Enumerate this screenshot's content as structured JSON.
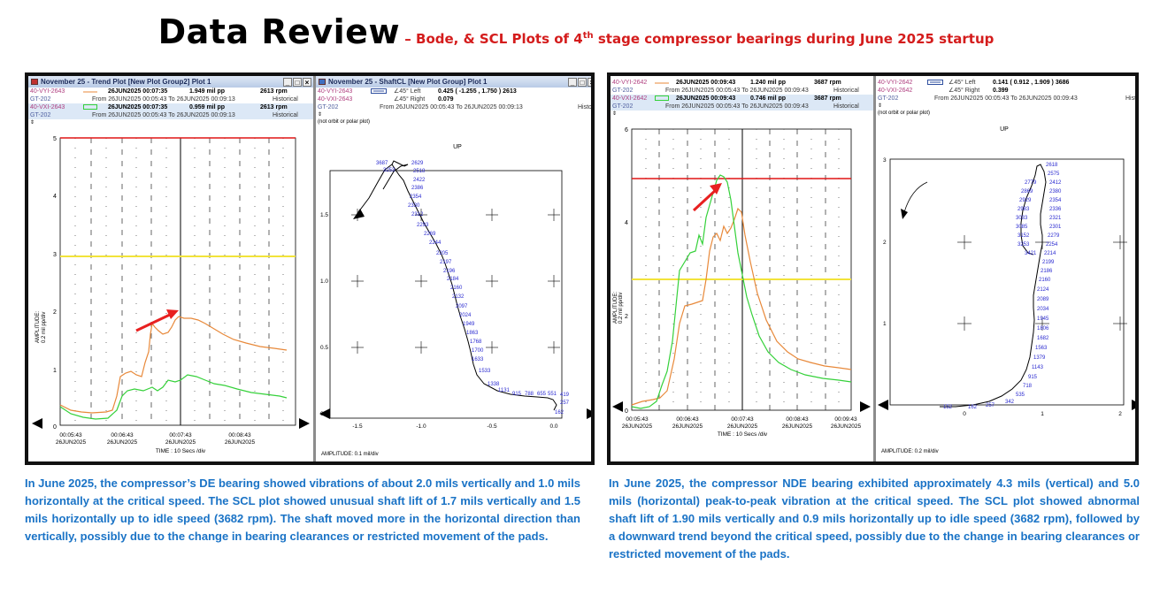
{
  "title": {
    "main": "Data Review",
    "sub_before": " – Bode, & SCL Plots of 4",
    "sub_sup": "th",
    "sub_after": " stage compressor bearings during June 2025 startup"
  },
  "left_trend": {
    "window_title": "November 25 - Trend Plot [New Plot Group2] Plot 1",
    "row1": {
      "tag": "40-VYI-2643",
      "date": "26JUN2025 00:07:35",
      "value": "1.949 mil  pp",
      "rpm": "2613 rpm"
    },
    "row2": {
      "tag": "GT-202",
      "range": "From 26JUN2025 00:05:43 To 26JUN2025 00:09:13",
      "mode": "Historical"
    },
    "row3": {
      "tag": "40-VXI-2643",
      "date": "26JUN2025 00:07:35",
      "value": "0.959 mil  pp",
      "rpm": "2613 rpm"
    },
    "row4": {
      "tag": "GT-202",
      "range": "From 26JUN2025 00:05:43 To 26JUN2025 00:09:13",
      "mode": "Historical"
    },
    "ylabel": "AMPLITUDE:",
    "ylabel2": "0.2 mil pp/div",
    "yticks": [
      "5",
      "4",
      "3",
      "2",
      "1",
      "0"
    ],
    "xticks": [
      [
        "00:05:43",
        "26JUN2025"
      ],
      [
        "00:06:43",
        "26JUN2025"
      ],
      [
        "00:07:43",
        "26JUN2025"
      ],
      [
        "00:08:43",
        "26JUN2025"
      ]
    ],
    "xlabel": "TIME : 10 Secs /div"
  },
  "left_scl": {
    "window_title": "November 25 - ShaftCL [New Plot Group] Plot 1",
    "row1": {
      "tag": "40-VYI-2643",
      "angle": "∠45°  Left",
      "value": "0.425 ( -1.255 , 1.750 ) 2613"
    },
    "row2": {
      "tag": "40-VXI-2643",
      "angle": "∠45°  Right",
      "value": "0.079"
    },
    "row3": {
      "tag": "GT-202",
      "range": "From 26JUN2025 00:05:43 To 26JUN2025 00:09:13",
      "mode": "Histo"
    },
    "note": "(not orbit or polar plot)",
    "up": "UP",
    "yticks": [
      "1.5",
      "1.0",
      "0.5",
      "0.0"
    ],
    "xticks": [
      "-1.5",
      "-1.0",
      "-0.5",
      "0.0"
    ],
    "amp": "AMPLITUDE: 0.1 mil/div",
    "speeds": [
      "2629",
      "2518",
      "2422",
      "2386",
      "2354",
      "2330",
      "2312",
      "2293",
      "2269",
      "2244",
      "2205",
      "2197",
      "2196",
      "2184",
      "2160",
      "2132",
      "2097",
      "2024",
      "1949",
      "1863",
      "1768",
      "1700",
      "1633",
      "1533",
      "1338",
      "1131",
      "915",
      "788",
      "655",
      "551",
      "419",
      "257",
      "162",
      "3687",
      "3253"
    ]
  },
  "right_trend": {
    "row1": {
      "tag": "40-VYI-2642",
      "date": "26JUN2025 00:09:43",
      "value": "1.240 mil  pp",
      "rpm": "3687 rpm"
    },
    "row2": {
      "tag": "GT-202",
      "range": "From 26JUN2025 00:05:43 To 26JUN2025 00:09:43",
      "mode": "Historical"
    },
    "row3": {
      "tag": "40-VXI-2642",
      "date": "26JUN2025 00:09:43",
      "value": "0.746 mil  pp",
      "rpm": "3687 rpm"
    },
    "row4": {
      "tag": "GT-202",
      "range": "From 26JUN2025 00:05:43 To 26JUN2025 00:09:43",
      "mode": "Historical"
    },
    "ylabel": "AMPLITUDE:",
    "ylabel2": "0.2 mil pp/div",
    "yticks": [
      "6",
      "4",
      "2",
      "0"
    ],
    "xticks": [
      [
        "00:05:43",
        "26JUN2025"
      ],
      [
        "00:06:43",
        "26JUN2025"
      ],
      [
        "00:07:43",
        "26JUN2025"
      ],
      [
        "00:08:43",
        "26JUN2025"
      ],
      [
        "00:09:43",
        "26JUN2025"
      ]
    ],
    "xlabel": "TIME : 10 Secs /div"
  },
  "right_scl": {
    "row1": {
      "tag": "40-VYI-2642",
      "angle": "∠45°  Left",
      "value": "0.141 ( 0.912 , 1.909 ) 3686"
    },
    "row2": {
      "tag": "40-VXI-2642",
      "angle": "∠45°  Right",
      "value": "0.399"
    },
    "row3": {
      "tag": "GT-202",
      "range": "From 26JUN2025 00:05:43 To 26JUN2025 00:09:43",
      "mode": "Histo"
    },
    "note": "(not orbit or polar plot)",
    "up": "UP",
    "yticks": [
      "3",
      "2",
      "1",
      "0"
    ],
    "xticks": [
      "0",
      "1",
      "2"
    ],
    "amp": "AMPLITUDE: 0.2 mil/div",
    "speeds": [
      "2618",
      "2575",
      "2779",
      "2412",
      "2869",
      "2380",
      "2929",
      "2354",
      "2983",
      "2336",
      "3033",
      "2321",
      "3085",
      "2301",
      "3152",
      "2279",
      "3253",
      "2254",
      "3421",
      "2214",
      "2199",
      "2186",
      "2160",
      "2124",
      "2089",
      "2034",
      "1945",
      "1806",
      "1682",
      "1563",
      "1379",
      "1143",
      "915",
      "718",
      "535",
      "342",
      "257",
      "162",
      "152"
    ]
  },
  "captions": {
    "left": "In June 2025, the compressor’s DE bearing showed vibrations of about 2.0 mils vertically and 1.0 mils horizontally at the critical speed. The SCL plot showed unusual shaft lift of 1.7 mils vertically and 1.5 mils horizontally up to idle speed (3682 rpm). The shaft moved more in the horizontal direction than vertically, possibly due to the change in bearing clearances or restricted movement of the pads.",
    "right": "In June 2025, the compressor NDE bearing exhibited approximately 4.3 mils (vertical) and 5.0 mils (horizontal) peak-to-peak vibration at the critical speed. The SCL plot showed abnormal shaft lift of 1.90 mils vertically and 0.9 mils horizontally up to idle speed (3682 rpm), followed by a downward trend beyond the critical speed, possibly due to the change in bearing clearances or restricted movement of the pads."
  },
  "colors": {
    "title_sub": "#d41c1c",
    "caption": "#1a73c6",
    "series_y": "#e8893a",
    "series_x": "#35d13a",
    "alarm_hi": "#e01515",
    "alarm_lo": "#f2e33a",
    "speed_label": "#2a2ad0"
  }
}
